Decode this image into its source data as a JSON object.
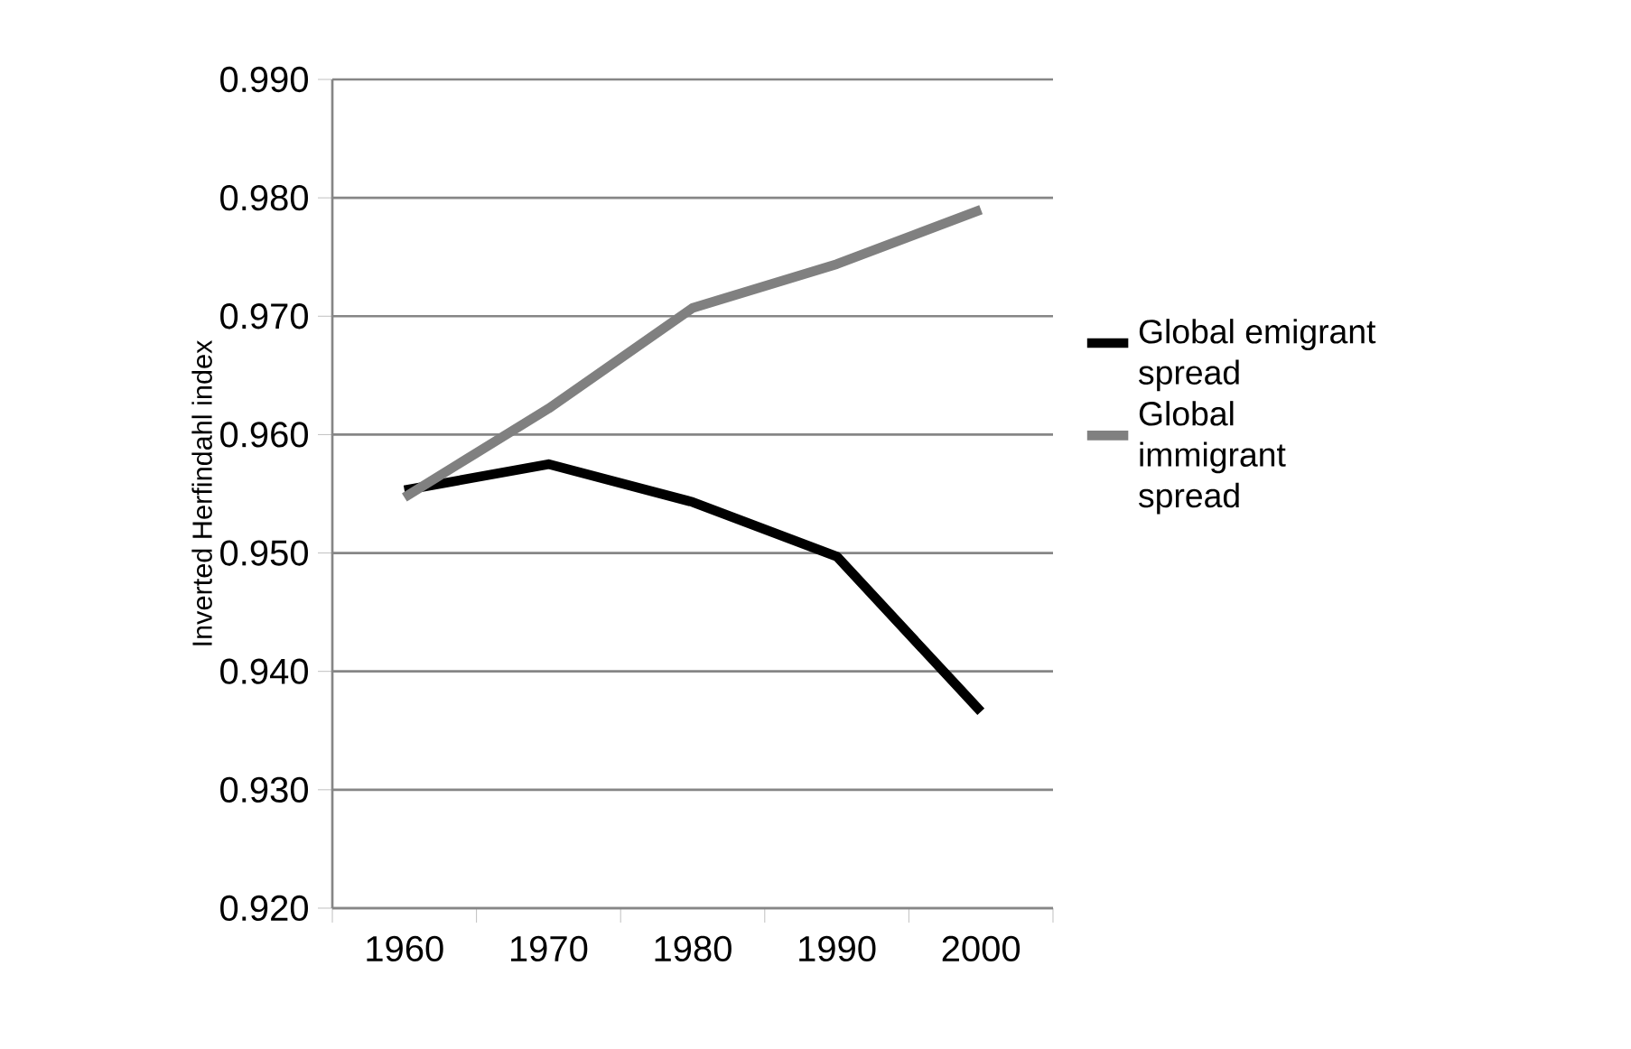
{
  "chart_data": {
    "type": "line",
    "ylabel": "Inverted Herfindahl index",
    "categories": [
      "1960",
      "1970",
      "1980",
      "1990",
      "2000"
    ],
    "series": [
      {
        "name": "Global emigrant spread",
        "color": "#000000",
        "values": [
          0.9553,
          0.9575,
          0.9543,
          0.9497,
          0.9366
        ]
      },
      {
        "name": "Global immigrant spread",
        "color": "#808080",
        "values": [
          0.9547,
          0.9622,
          0.9707,
          0.9744,
          0.979
        ]
      }
    ],
    "ylim": [
      0.92,
      0.99
    ],
    "yticks": [
      {
        "value": 0.92,
        "label": "0.920"
      },
      {
        "value": 0.93,
        "label": "0.930"
      },
      {
        "value": 0.94,
        "label": "0.940"
      },
      {
        "value": 0.95,
        "label": "0.950"
      },
      {
        "value": 0.96,
        "label": "0.960"
      },
      {
        "value": 0.97,
        "label": "0.970"
      },
      {
        "value": 0.98,
        "label": "0.980"
      },
      {
        "value": 0.99,
        "label": "0.990"
      }
    ],
    "grid": "y",
    "legend": "right",
    "marker": "none",
    "line_style": "solid"
  }
}
